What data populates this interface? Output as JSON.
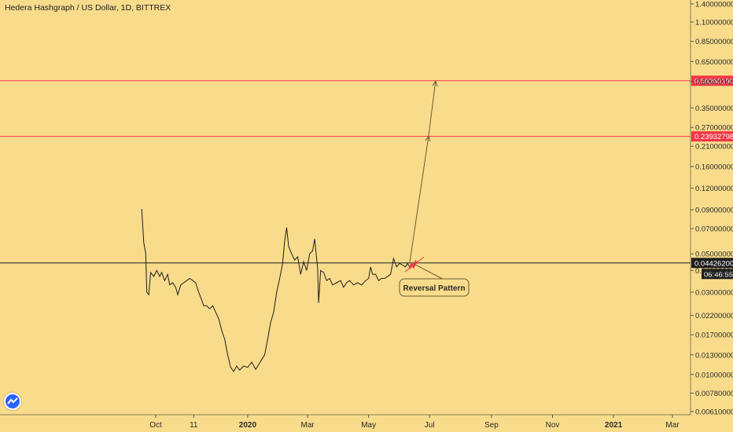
{
  "chart_data": {
    "type": "line",
    "title": "Hedera Hashgraph / US Dollar, 1D, BITTREX",
    "scale": "log",
    "ylim": [
      0.0058,
      1.5
    ],
    "y_ticks": [
      1.4,
      1.1,
      0.85,
      0.65,
      0.5,
      0.35,
      0.27,
      0.21,
      0.16,
      0.12,
      0.09,
      0.07,
      0.05,
      0.04,
      0.03,
      0.022,
      0.017,
      0.013,
      0.01,
      0.0078,
      0.0061
    ],
    "y_tick_labels": [
      "1.40000000",
      "1.10000000",
      "0.85000000",
      "0.65000000",
      "0.50000000",
      "0.35000000",
      "0.27000000",
      "0.21000000",
      "0.16000000",
      "0.12000000",
      "0.09000000",
      "0.07000000",
      "0.05000000",
      "0.04000000",
      "0.03000000",
      "0.02200000",
      "0.01700000",
      "0.01300000",
      "0.01000000",
      "0.00780000",
      "0.00610000"
    ],
    "x_domain": [
      "2019-07-26",
      "2021-03-31"
    ],
    "x_ticks": [
      {
        "date": "2019-10-01",
        "label": "Oct",
        "bold": false
      },
      {
        "date": "2019-11-08",
        "label": "11",
        "bold": false
      },
      {
        "date": "2020-01-01",
        "label": "2020",
        "bold": true
      },
      {
        "date": "2020-03-01",
        "label": "Mar",
        "bold": false
      },
      {
        "date": "2020-05-01",
        "label": "May",
        "bold": false
      },
      {
        "date": "2020-07-01",
        "label": "Jul",
        "bold": false
      },
      {
        "date": "2020-09-01",
        "label": "Sep",
        "bold": false
      },
      {
        "date": "2020-11-01",
        "label": "Nov",
        "bold": false
      },
      {
        "date": "2021-01-01",
        "label": "2021",
        "bold": true
      },
      {
        "date": "2021-03-01",
        "label": "Mar",
        "bold": false
      }
    ],
    "series": [
      {
        "values": [
          [
            "2019-09-17",
            0.091
          ],
          [
            "2019-09-19",
            0.058
          ],
          [
            "2019-09-21",
            0.05
          ],
          [
            "2019-09-22",
            0.03
          ],
          [
            "2019-09-24",
            0.029
          ],
          [
            "2019-09-26",
            0.039
          ],
          [
            "2019-09-29",
            0.037
          ],
          [
            "2019-10-02",
            0.04
          ],
          [
            "2019-10-05",
            0.037
          ],
          [
            "2019-10-07",
            0.039
          ],
          [
            "2019-10-10",
            0.035
          ],
          [
            "2019-10-13",
            0.038
          ],
          [
            "2019-10-15",
            0.033
          ],
          [
            "2019-10-18",
            0.034
          ],
          [
            "2019-10-21",
            0.032
          ],
          [
            "2019-10-23",
            0.029
          ],
          [
            "2019-10-26",
            0.033
          ],
          [
            "2019-10-29",
            0.034
          ],
          [
            "2019-11-01",
            0.035
          ],
          [
            "2019-11-04",
            0.036
          ],
          [
            "2019-11-07",
            0.035
          ],
          [
            "2019-11-10",
            0.034
          ],
          [
            "2019-11-13",
            0.03
          ],
          [
            "2019-11-15",
            0.028
          ],
          [
            "2019-11-18",
            0.025
          ],
          [
            "2019-11-21",
            0.025
          ],
          [
            "2019-11-24",
            0.024
          ],
          [
            "2019-11-27",
            0.025
          ],
          [
            "2019-11-30",
            0.023
          ],
          [
            "2019-12-03",
            0.021
          ],
          [
            "2019-12-06",
            0.018
          ],
          [
            "2019-12-09",
            0.016
          ],
          [
            "2019-12-12",
            0.013
          ],
          [
            "2019-12-15",
            0.011
          ],
          [
            "2019-12-18",
            0.0104
          ],
          [
            "2019-12-21",
            0.0112
          ],
          [
            "2019-12-24",
            0.0106
          ],
          [
            "2019-12-28",
            0.0112
          ],
          [
            "2020-01-01",
            0.011
          ],
          [
            "2020-01-05",
            0.0118
          ],
          [
            "2020-01-09",
            0.0107
          ],
          [
            "2020-01-12",
            0.0114
          ],
          [
            "2020-01-15",
            0.0122
          ],
          [
            "2020-01-18",
            0.013
          ],
          [
            "2020-01-21",
            0.016
          ],
          [
            "2020-01-24",
            0.02
          ],
          [
            "2020-01-27",
            0.023
          ],
          [
            "2020-01-30",
            0.03
          ],
          [
            "2020-02-02",
            0.036
          ],
          [
            "2020-02-05",
            0.044
          ],
          [
            "2020-02-07",
            0.059
          ],
          [
            "2020-02-09",
            0.071
          ],
          [
            "2020-02-11",
            0.055
          ],
          [
            "2020-02-14",
            0.05
          ],
          [
            "2020-02-17",
            0.046
          ],
          [
            "2020-02-20",
            0.048
          ],
          [
            "2020-02-23",
            0.038
          ],
          [
            "2020-02-26",
            0.045
          ],
          [
            "2020-02-29",
            0.04
          ],
          [
            "2020-03-03",
            0.05
          ],
          [
            "2020-03-06",
            0.052
          ],
          [
            "2020-03-08",
            0.061
          ],
          [
            "2020-03-11",
            0.041
          ],
          [
            "2020-03-12",
            0.026
          ],
          [
            "2020-03-14",
            0.04
          ],
          [
            "2020-03-17",
            0.039
          ],
          [
            "2020-03-20",
            0.035
          ],
          [
            "2020-03-23",
            0.036
          ],
          [
            "2020-03-26",
            0.033
          ],
          [
            "2020-03-30",
            0.034
          ],
          [
            "2020-04-03",
            0.035
          ],
          [
            "2020-04-06",
            0.032
          ],
          [
            "2020-04-09",
            0.034
          ],
          [
            "2020-04-12",
            0.035
          ],
          [
            "2020-04-16",
            0.033
          ],
          [
            "2020-04-20",
            0.034
          ],
          [
            "2020-04-24",
            0.033
          ],
          [
            "2020-04-28",
            0.035
          ],
          [
            "2020-05-01",
            0.036
          ],
          [
            "2020-05-03",
            0.042
          ],
          [
            "2020-05-05",
            0.038
          ],
          [
            "2020-05-08",
            0.038
          ],
          [
            "2020-05-11",
            0.035
          ],
          [
            "2020-05-14",
            0.036
          ],
          [
            "2020-05-17",
            0.036
          ],
          [
            "2020-05-20",
            0.037
          ],
          [
            "2020-05-23",
            0.038
          ],
          [
            "2020-05-26",
            0.047
          ],
          [
            "2020-05-29",
            0.042
          ],
          [
            "2020-06-01",
            0.044
          ],
          [
            "2020-06-04",
            0.043
          ],
          [
            "2020-06-07",
            0.042
          ],
          [
            "2020-06-09",
            0.044
          ],
          [
            "2020-06-11",
            0.042
          ]
        ]
      }
    ],
    "horizontal_levels": [
      {
        "value": 0.5026019,
        "label": "0.50260190",
        "color": "#f23645"
      },
      {
        "value": 0.23932798,
        "label": "0.23932798",
        "color": "#f23645"
      },
      {
        "value": 0.044262,
        "label": "0.04426200",
        "color": "#1e1e1e"
      }
    ],
    "countdown": "06:46:55",
    "projection": [
      [
        "2020-06-11",
        0.044
      ],
      [
        "2020-06-30",
        0.24
      ],
      [
        "2020-07-07",
        0.5
      ]
    ],
    "pattern_points": [
      [
        "2020-06-11",
        0.041
      ],
      [
        "2020-06-13",
        0.0435
      ],
      [
        "2020-06-15",
        0.042
      ],
      [
        "2020-06-17",
        0.045
      ],
      [
        "2020-06-19",
        0.044
      ]
    ],
    "annotation": {
      "text": "Reversal Pattern",
      "date": "2020-06-21",
      "value": 0.043
    },
    "colors": {
      "background": "#f8dc8c",
      "line": "#1e1e1e",
      "level": "#f23645",
      "pattern": "#f23645"
    }
  }
}
